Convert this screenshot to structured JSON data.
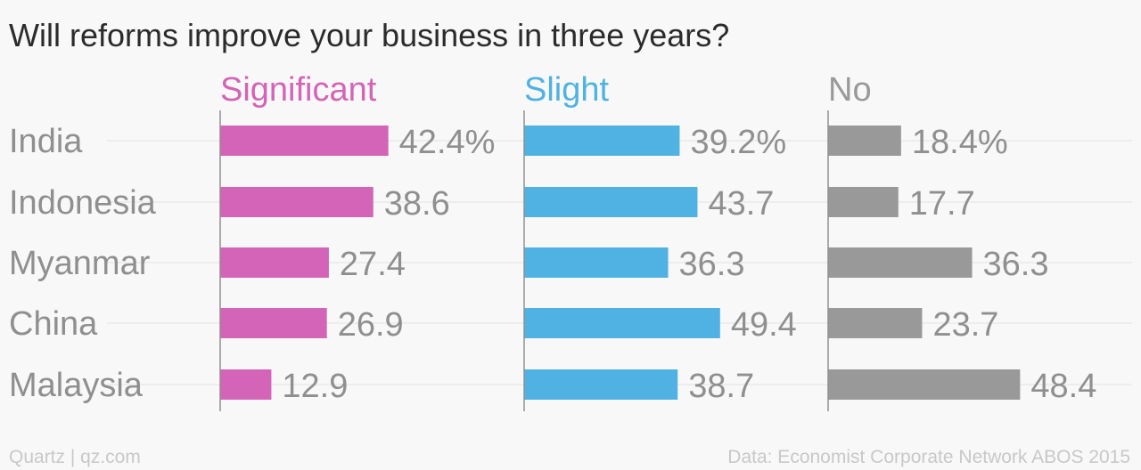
{
  "chart_data": {
    "type": "bar",
    "title": "Will reforms improve your business in three years?",
    "categories": [
      "India",
      "Indonesia",
      "Myanmar",
      "China",
      "Malaysia"
    ],
    "series": [
      {
        "name": "Significant",
        "color": "#d364b8",
        "values": [
          42.4,
          38.6,
          27.4,
          26.9,
          12.9
        ],
        "labels": [
          "42.4%",
          "38.6",
          "27.4",
          "26.9",
          "12.9"
        ]
      },
      {
        "name": "Slight",
        "color": "#4fb2e3",
        "values": [
          39.2,
          43.7,
          36.3,
          49.4,
          38.7
        ],
        "labels": [
          "39.2%",
          "43.7",
          "36.3",
          "49.4",
          "38.7"
        ]
      },
      {
        "name": "No",
        "color": "#999999",
        "values": [
          18.4,
          17.7,
          36.3,
          23.7,
          48.4
        ],
        "labels": [
          "18.4%",
          "17.7",
          "36.3",
          "23.7",
          "48.4"
        ]
      }
    ],
    "grid": true,
    "orientation": "horizontal",
    "layout": "small-multiples"
  },
  "footer": {
    "left": "Quartz | qz.com",
    "right": "Data: Economist Corporate Network ABOS 2015"
  }
}
